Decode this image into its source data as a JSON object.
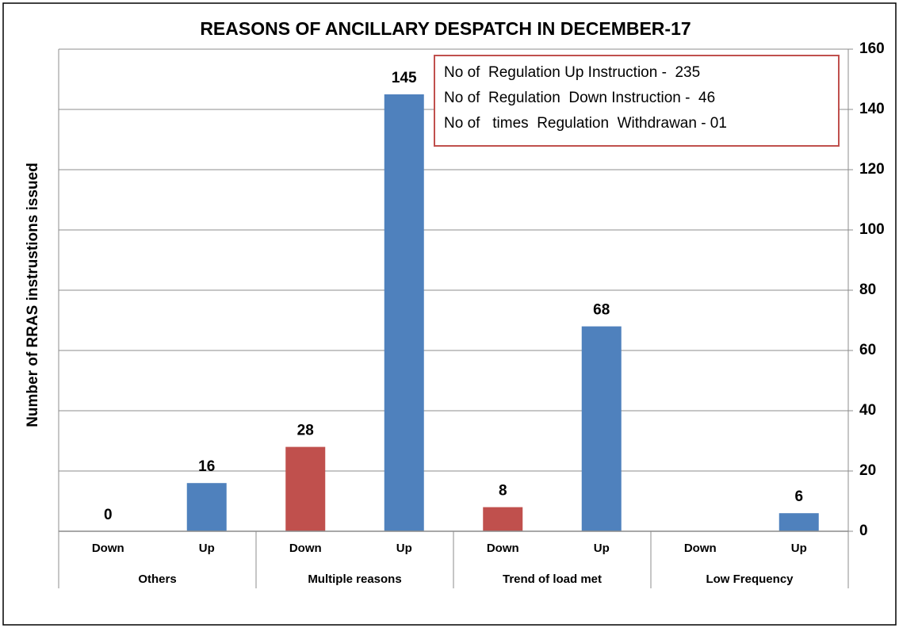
{
  "chart_data": {
    "type": "bar",
    "title": "REASONS OF ANCILLARY DESPATCH IN DECEMBER-17",
    "y_axis_label": "Number of RRAS instrustions issued",
    "categories": [
      "Down",
      "Up",
      "Down",
      "Up",
      "Down",
      "Up",
      "Down",
      "Up"
    ],
    "groups": [
      "Others",
      "Multiple reasons",
      "Trend of load met",
      "Low Frequency"
    ],
    "values": [
      0,
      16,
      28,
      145,
      8,
      68,
      null,
      6
    ],
    "colors": [
      "#c0504d",
      "#4f81bd",
      "#c0504d",
      "#4f81bd",
      "#c0504d",
      "#4f81bd",
      "#c0504d",
      "#4f81bd"
    ],
    "ylim": [
      0,
      160
    ],
    "yticks": [
      0,
      20,
      40,
      60,
      80,
      100,
      120,
      140,
      160
    ],
    "y_axis_side": "right",
    "grid": true,
    "annotations": [
      "No of  Regulation Up Instruction -  235",
      "No of  Regulation  Down Instruction -  46",
      "No of   times  Regulation  Withdrawan - 01"
    ]
  }
}
